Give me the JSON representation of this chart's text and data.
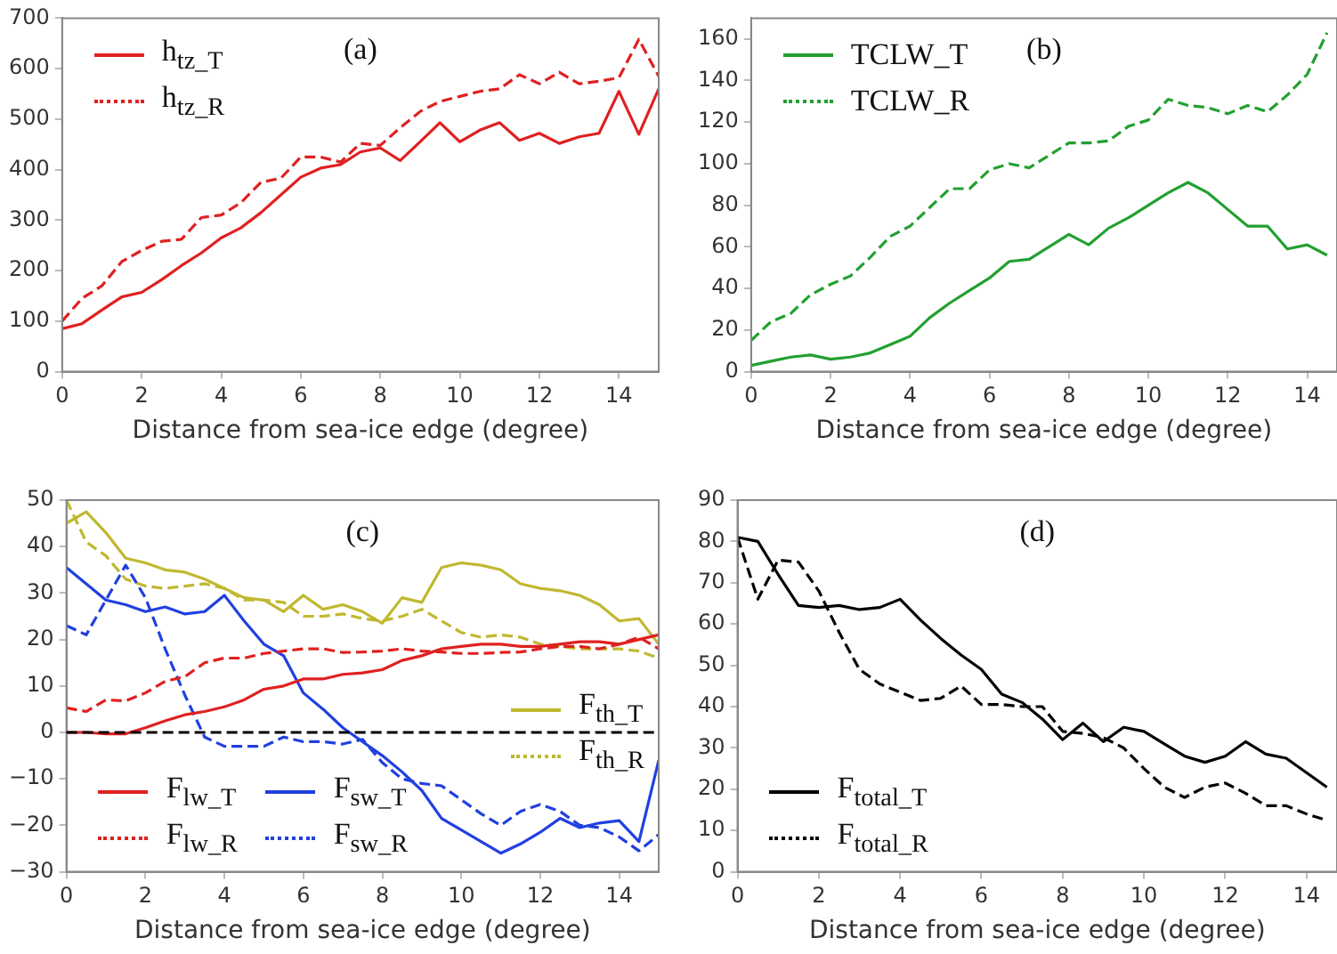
{
  "chart_data": [
    {
      "type": "line",
      "title": "(a)",
      "xlabel": "Distance from sea-ice edge (degree)",
      "legend": "top left",
      "x": [
        0,
        0.5,
        1,
        1.5,
        2,
        2.5,
        3,
        3.5,
        4,
        4.5,
        5,
        5.5,
        6,
        6.5,
        7,
        7.5,
        8,
        8.5,
        9,
        9.5,
        10,
        10.5,
        11,
        11.5,
        12,
        12.5,
        13,
        13.5,
        14,
        14.5,
        15
      ],
      "series": [
        {
          "name": "h$_{tz_T}$",
          "color": "#e02020",
          "line_style": "solid",
          "values": [
            85,
            95,
            122,
            148,
            157,
            182,
            210,
            235,
            265,
            285,
            315,
            350,
            385,
            403,
            410,
            435,
            443,
            418,
            455,
            493,
            455,
            478,
            493,
            458,
            472,
            452,
            465,
            472,
            555,
            470,
            560
          ]
        },
        {
          "name": "h$_{tz_R}$",
          "color": "#e02020",
          "line_style": "dashed",
          "values": [
            100,
            145,
            170,
            218,
            240,
            258,
            262,
            305,
            310,
            335,
            375,
            383,
            425,
            425,
            415,
            452,
            448,
            483,
            515,
            535,
            545,
            555,
            560,
            588,
            570,
            593,
            570,
            575,
            582,
            658,
            585
          ]
        }
      ],
      "xlim": [
        0,
        15
      ],
      "ylim": [
        0,
        700
      ],
      "xticks": [
        0,
        2,
        4,
        6,
        8,
        10,
        12,
        14
      ],
      "yticks": [
        0,
        100,
        200,
        300,
        400,
        500,
        600,
        700
      ]
    },
    {
      "type": "line",
      "title": "(b)",
      "xlabel": "Distance from sea-ice edge (degree)",
      "legend": "top left",
      "x": [
        0,
        0.5,
        1,
        1.5,
        2,
        2.5,
        3,
        3.5,
        4,
        4.5,
        5,
        5.5,
        6,
        6.5,
        7,
        7.5,
        8,
        8.5,
        9,
        9.5,
        10,
        10.5,
        11,
        11.5,
        12,
        12.5,
        13,
        13.5,
        14,
        14.5
      ],
      "series": [
        {
          "name": "TCLW_T",
          "color": "#22a030",
          "line_style": "solid",
          "values": [
            3,
            5,
            7,
            8,
            6,
            7,
            9,
            13,
            17,
            26,
            33,
            39,
            45,
            53,
            54,
            60,
            66,
            61,
            69,
            74,
            80,
            86,
            91,
            86,
            78,
            70,
            70,
            59,
            61,
            56
          ]
        },
        {
          "name": "TCLW_R",
          "color": "#22a030",
          "line_style": "dashed",
          "values": [
            15,
            24,
            28,
            37,
            42,
            46,
            55,
            65,
            70,
            79,
            88,
            88,
            97,
            100,
            98,
            104,
            110,
            110,
            111,
            118,
            121,
            131,
            128,
            127,
            124,
            128,
            125,
            133,
            143,
            163
          ]
        }
      ],
      "xlim": [
        0,
        14.75
      ],
      "ylim": [
        0,
        170
      ],
      "xticks": [
        0,
        2,
        4,
        6,
        8,
        10,
        12,
        14
      ],
      "yticks": [
        0,
        20,
        40,
        60,
        80,
        100,
        120,
        140,
        160
      ]
    },
    {
      "type": "line",
      "title": "(c)",
      "xlabel": "Distance from sea-ice edge (degree)",
      "legend": "bottom left",
      "x": [
        0,
        0.5,
        1,
        1.5,
        2,
        2.5,
        3,
        3.5,
        4,
        4.5,
        5,
        5.5,
        6,
        6.5,
        7,
        7.5,
        8,
        8.5,
        9,
        9.5,
        10,
        10.5,
        11,
        11.5,
        12,
        12.5,
        13,
        13.5,
        14,
        14.5,
        15
      ],
      "series": [
        {
          "name": "F$_{lw_T}$",
          "color": "#e02020",
          "line_style": "solid",
          "values": [
            0,
            0,
            -0.3,
            -0.3,
            1,
            2.5,
            3.8,
            4.5,
            5.5,
            7,
            9.3,
            10,
            11.5,
            11.5,
            12.5,
            12.8,
            13.5,
            15.5,
            16.5,
            18,
            18.5,
            19,
            19,
            18.5,
            18.5,
            19,
            19.5,
            19.5,
            19,
            20,
            21
          ]
        },
        {
          "name": "F$_{lw_R}$",
          "color": "#e02020",
          "line_style": "dashed",
          "values": [
            5.3,
            4.5,
            7,
            6.8,
            8.5,
            11,
            12,
            15,
            16,
            16,
            17,
            17.5,
            18,
            18,
            17.2,
            17.3,
            17.5,
            18,
            17.5,
            17.3,
            17,
            17,
            17.2,
            17.3,
            18,
            18.5,
            18.5,
            18,
            19,
            20.5,
            18
          ]
        },
        {
          "name": "F$_{sw_T}$",
          "color": "#2040e0",
          "line_style": "solid",
          "values": [
            35.5,
            32,
            28.5,
            27.5,
            26,
            27,
            25.5,
            26,
            29.5,
            24,
            19,
            16.5,
            8.5,
            5,
            1,
            -2,
            -5,
            -8.5,
            -12.5,
            -18.5,
            -21,
            -23.5,
            -26,
            -24,
            -21.5,
            -18.5,
            -20.5,
            -19.5,
            -19,
            -23.5,
            -6
          ]
        },
        {
          "name": "F$_{sw_R}$",
          "color": "#2040e0",
          "line_style": "dashed",
          "values": [
            23,
            21,
            28.5,
            36,
            29,
            18,
            8,
            -1,
            -3,
            -3,
            -3,
            -1,
            -2,
            -2,
            -2.5,
            -1.5,
            -6.5,
            -10,
            -11,
            -11.5,
            -14.5,
            -17.5,
            -20,
            -17,
            -15.5,
            -17,
            -20,
            -20.5,
            -22.5,
            -25.5,
            -22
          ]
        },
        {
          "name": "F$_{th_T}$",
          "color": "#c0b830",
          "line_style": "solid",
          "values": [
            45,
            47.5,
            43,
            37.5,
            36.5,
            35,
            34.5,
            33,
            31,
            29,
            28.5,
            26,
            29.5,
            26.5,
            27.5,
            26,
            23.5,
            29,
            28,
            35.5,
            36.5,
            36,
            35,
            32,
            31,
            30.5,
            29.5,
            27.5,
            24,
            24.5,
            19
          ]
        },
        {
          "name": "F$_{th_R}$",
          "color": "#c0b830",
          "line_style": "dashed",
          "values": [
            50,
            41,
            38,
            33,
            31.5,
            31,
            31.5,
            32,
            31,
            28.5,
            28.5,
            28,
            25,
            25,
            25.5,
            24.5,
            24,
            25,
            26.5,
            24,
            21.5,
            20.5,
            21,
            20.5,
            19,
            18.5,
            18,
            18,
            18,
            17.5,
            16
          ]
        }
      ],
      "ref_lines": [
        {
          "axis": "y",
          "value": 0,
          "color": "#000000",
          "line_style": "dashed"
        }
      ],
      "xlim": [
        0,
        15
      ],
      "ylim": [
        -30,
        50
      ],
      "xticks": [
        0,
        2,
        4,
        6,
        8,
        10,
        12,
        14
      ],
      "yticks": [
        {
          "value": -30,
          "label": "−30"
        },
        {
          "value": -20,
          "label": "−20"
        },
        {
          "value": -10,
          "label": "−10"
        },
        0,
        10,
        20,
        30,
        40,
        50
      ]
    },
    {
      "type": "line",
      "title": "(d)",
      "xlabel": "Distance from sea-ice edge (degree)",
      "legend": "bottom left",
      "x": [
        0,
        0.5,
        1,
        1.5,
        2,
        2.5,
        3,
        3.5,
        4,
        4.5,
        5,
        5.5,
        6,
        6.5,
        7,
        7.5,
        8,
        8.5,
        9,
        9.5,
        10,
        10.5,
        11,
        11.5,
        12,
        12.5,
        13,
        13.5,
        14,
        14.5
      ],
      "series": [
        {
          "name": "F$_{total_T}$",
          "color": "#000000",
          "line_style": "solid",
          "values": [
            81,
            80,
            72,
            64.5,
            64,
            64.5,
            63.5,
            64,
            66,
            61,
            56.5,
            52.5,
            49,
            43,
            41,
            37,
            32,
            36,
            31.5,
            35,
            34,
            31,
            28,
            26.5,
            28,
            31.5,
            28.5,
            27.5,
            24,
            20.5
          ]
        },
        {
          "name": "F$_{total_R}$",
          "color": "#000000",
          "line_style": "dashed",
          "values": [
            81,
            66,
            75.5,
            75,
            68,
            58,
            49,
            45.5,
            43.5,
            41.5,
            42,
            45,
            40.5,
            40.5,
            40,
            40,
            34,
            33.5,
            32.5,
            30,
            25,
            20.5,
            18,
            20.5,
            21.5,
            19,
            16,
            16,
            14,
            12.5
          ]
        }
      ],
      "xlim": [
        0,
        14.75
      ],
      "ylim": [
        0,
        90
      ],
      "xticks": [
        0,
        2,
        4,
        6,
        8,
        10,
        12,
        14
      ],
      "yticks": [
        0,
        10,
        20,
        30,
        40,
        50,
        60,
        70,
        80,
        90
      ]
    }
  ]
}
